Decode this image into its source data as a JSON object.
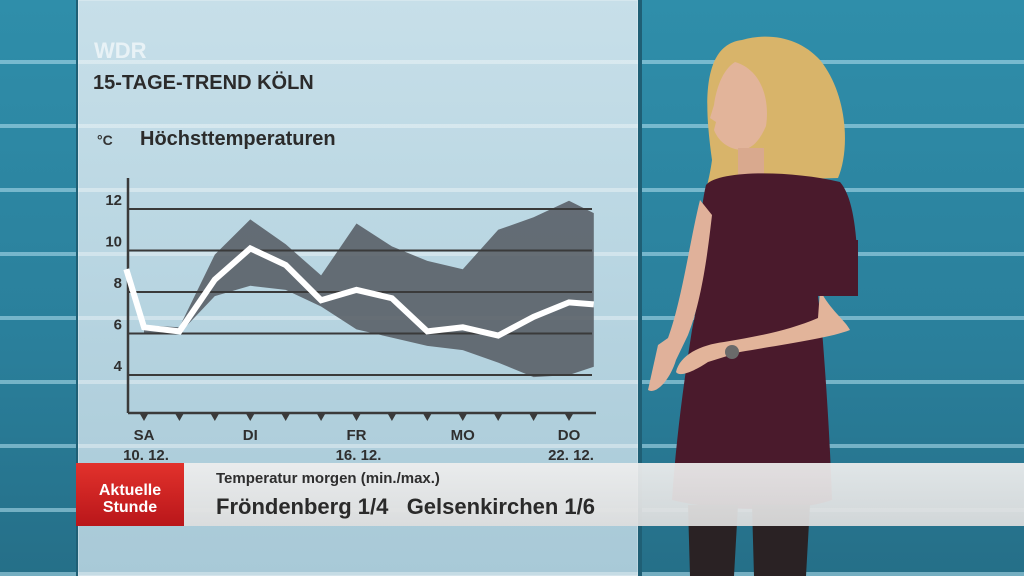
{
  "broadcaster": "WDR",
  "page_title": "15-TAGE-TREND KÖLN",
  "chart_data": {
    "type": "line",
    "title": "Höchsttemperaturen",
    "ylabel": "°C",
    "xlabel": "",
    "ylim": [
      2,
      13.5
    ],
    "yticks": [
      4,
      6,
      8,
      10,
      12
    ],
    "x_days": 15,
    "x_tick_labels": [
      {
        "day": 0,
        "lines": [
          "SA",
          "10. 12."
        ]
      },
      {
        "day": 3,
        "lines": [
          "DI",
          ""
        ]
      },
      {
        "day": 6,
        "lines": [
          "FR",
          "16. 12."
        ]
      },
      {
        "day": 9,
        "lines": [
          "MO",
          ""
        ]
      },
      {
        "day": 12,
        "lines": [
          "DO",
          "22. 12."
        ]
      }
    ],
    "series": [
      {
        "kind": "line",
        "x": [
          -0.5,
          0,
          1,
          2,
          3,
          4,
          5,
          6,
          7,
          8,
          9,
          10,
          11,
          12,
          12.7
        ],
        "values": [
          9.1,
          6.3,
          6.1,
          8.6,
          10.1,
          9.3,
          7.6,
          8.1,
          7.7,
          6.1,
          6.3,
          5.9,
          6.8,
          7.5,
          7.4
        ]
      },
      {
        "kind": "band",
        "x": [
          0,
          1,
          2,
          3,
          4,
          5,
          6,
          7,
          8,
          9,
          10,
          11,
          12,
          12.7
        ],
        "upper": [
          6.4,
          6.3,
          9.8,
          11.5,
          10.3,
          8.8,
          11.3,
          10.2,
          9.5,
          9.1,
          11.0,
          11.6,
          12.4,
          11.8
        ],
        "lower": [
          6.0,
          6.0,
          7.8,
          8.3,
          8.1,
          7.3,
          6.2,
          5.8,
          5.4,
          5.2,
          4.6,
          3.9,
          4.0,
          4.4
        ]
      }
    ],
    "colors": {
      "line": "#ffffff",
      "band": "#5a6068",
      "axis": "#3a3a3a",
      "grid": "#3a3a3a"
    },
    "grid": true,
    "legend": "none"
  },
  "lower_third": {
    "brand_line1": "Aktuelle",
    "brand_line2": "Stunde",
    "label": "Temperatur morgen (min./max.)",
    "value": "Fröndenberg 1/4   Gelsenkirchen 1/6"
  }
}
